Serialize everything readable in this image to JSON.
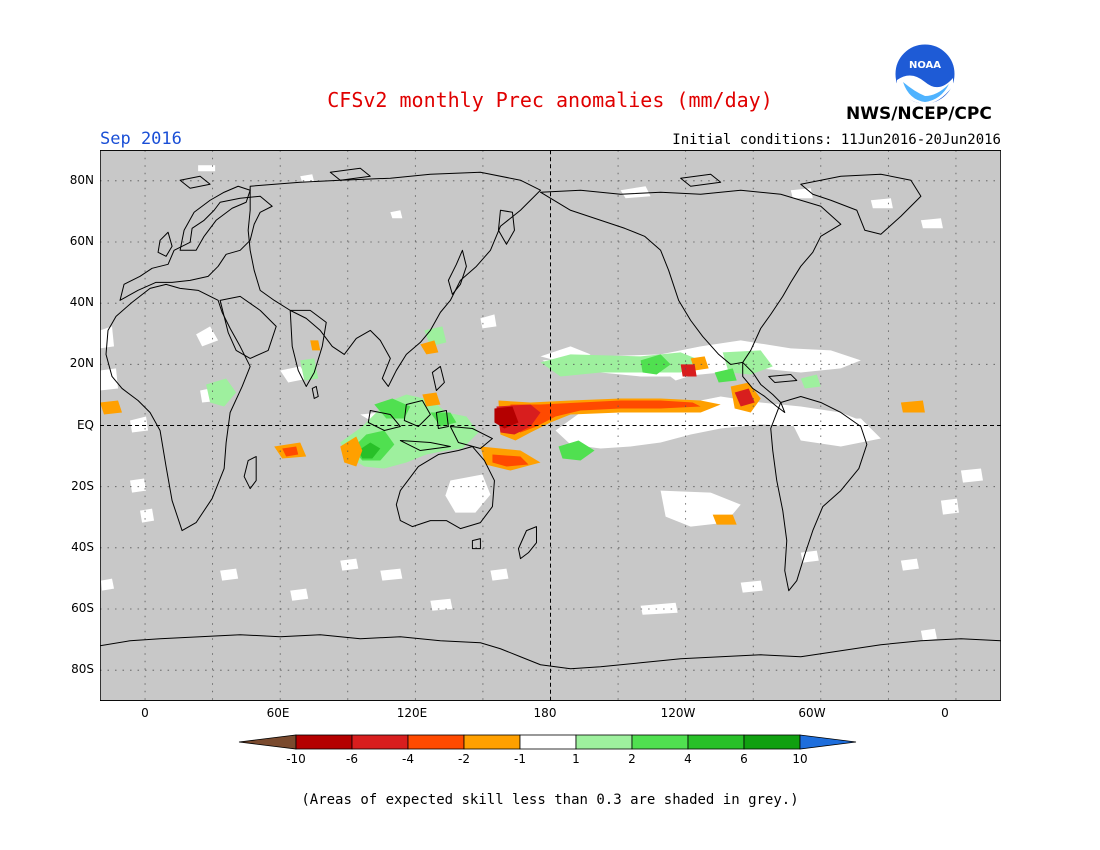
{
  "header": {
    "title": "CFSv2 monthly Prec anomalies (mm/day)",
    "organization": "NWS/NCEP/CPC",
    "logo_text": "NOAA",
    "month": "Sep 2016",
    "initial_conditions": "Initial conditions: 11Jun2016-20Jun2016"
  },
  "map": {
    "background_color": "#c8c8c8",
    "projection": "equirectangular",
    "lon_range": [
      -20,
      380
    ],
    "lat_range": [
      -90,
      90
    ],
    "lat_labels": [
      "80N",
      "60N",
      "40N",
      "20N",
      "EQ",
      "20S",
      "40S",
      "60S",
      "80S"
    ],
    "lon_labels": [
      "0",
      "60E",
      "120E",
      "180",
      "120W",
      "60W",
      "0"
    ],
    "reference_lines": [
      "equator (dashed)",
      "dateline 180 (dashed)"
    ],
    "grid": "dotted every 30° lon / 20° lat"
  },
  "colorbar": {
    "labels": [
      "-10",
      "-6",
      "-4",
      "-2",
      "-1",
      "1",
      "2",
      "4",
      "6",
      "10"
    ],
    "colors": [
      "#7a4a2e",
      "#b40000",
      "#d81e1e",
      "#ff4a00",
      "#ffa000",
      "#ffffff",
      "#9ef09e",
      "#50e050",
      "#28c028",
      "#10a010",
      "#1e6edc"
    ]
  },
  "footnote": "(Areas of expected skill less than 0.3 are shaded in grey.)"
}
